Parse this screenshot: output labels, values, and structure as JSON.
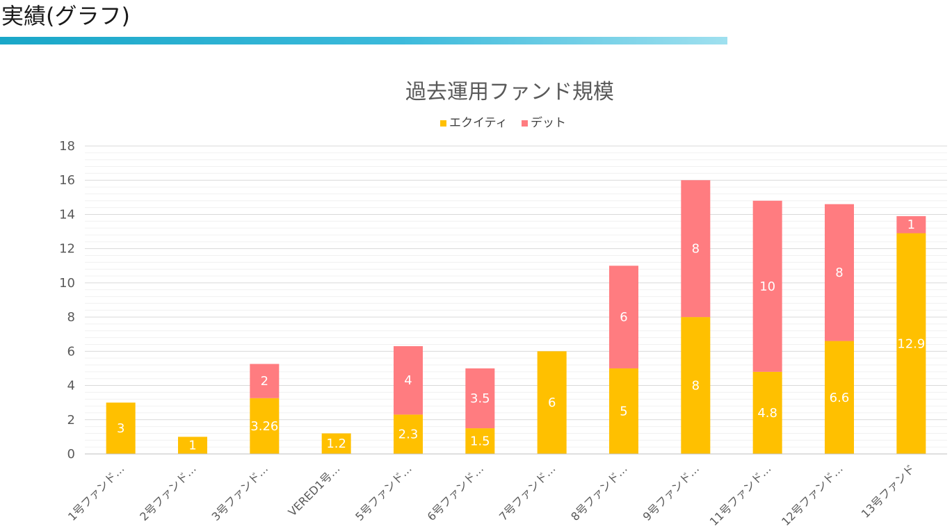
{
  "page": {
    "title": "実績(グラフ)"
  },
  "colors": {
    "equity": "#FFC000",
    "debt": "#FF7C80",
    "header_rule": "#1aa7c8"
  },
  "chart_data": {
    "type": "bar",
    "stacked": true,
    "title": "過去運用ファンド規模",
    "xlabel": "",
    "ylabel": "",
    "ylim": [
      0,
      18
    ],
    "yticks": [
      0,
      2,
      4,
      6,
      8,
      10,
      12,
      14,
      16,
      18
    ],
    "grid": true,
    "legend": "top-center",
    "categories": [
      "1号ファンド…",
      "2号ファンド…",
      "3号ファンド…",
      "VERED1号…",
      "5号ファンド…",
      "6号ファンド…",
      "7号ファンド…",
      "8号ファンド…",
      "9号ファンド…",
      "11号ファンド…",
      "12号ファンド…",
      "13号ファンド"
    ],
    "series": [
      {
        "name": "エクイティ",
        "values": [
          3,
          1,
          3.26,
          1.2,
          2.3,
          1.5,
          6,
          5,
          8,
          4.8,
          6.6,
          12.9
        ],
        "labels": [
          "3",
          "1",
          "3.26",
          "1.2",
          "2.3",
          "1.5",
          "6",
          "5",
          "8",
          "4.8",
          "6.6",
          "12.9"
        ]
      },
      {
        "name": "デット",
        "values": [
          0,
          0,
          2,
          0,
          4,
          3.5,
          0,
          6,
          8,
          10,
          8,
          1
        ],
        "labels": [
          "",
          "",
          "2",
          "",
          "4",
          "3.5",
          "",
          "6",
          "8",
          "10",
          "8",
          "1"
        ]
      }
    ]
  }
}
